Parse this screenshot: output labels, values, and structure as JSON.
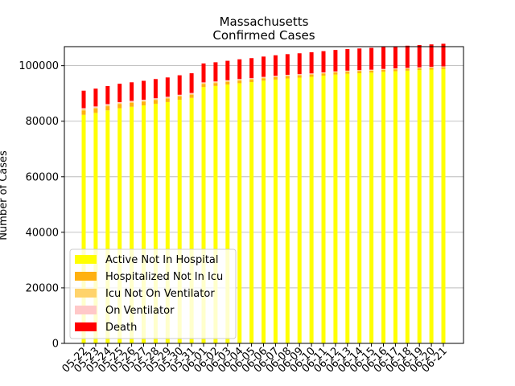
{
  "chart_data": {
    "type": "bar",
    "stacked": true,
    "title": "Massachusetts",
    "subtitle": "Confirmed Cases",
    "xlabel": "",
    "ylabel": "Number of Cases",
    "ylim": [
      0,
      106850
    ],
    "yticks": [
      0,
      20000,
      40000,
      60000,
      80000,
      100000
    ],
    "grid": "horizontal",
    "legend_position": "lower-left",
    "categories": [
      "05-22",
      "05-23",
      "05-24",
      "05-25",
      "05-26",
      "05-27",
      "05-28",
      "05-29",
      "05-30",
      "05-31",
      "06-01",
      "06-02",
      "06-03",
      "06-04",
      "06-05",
      "06-06",
      "06-07",
      "06-08",
      "06-09",
      "06-10",
      "06-11",
      "06-12",
      "06-13",
      "06-14",
      "06-15",
      "06-16",
      "06-17",
      "06-18",
      "06-19",
      "06-20",
      "06-21"
    ],
    "series": [
      {
        "name": "Active Not In Hospital",
        "color": "#ffff00",
        "values": [
          82300,
          83000,
          83900,
          84700,
          85200,
          85700,
          86300,
          86900,
          87700,
          88400,
          92300,
          92700,
          93200,
          93700,
          94100,
          94600,
          95000,
          95400,
          95700,
          96000,
          96400,
          96800,
          97100,
          97300,
          97500,
          97800,
          98000,
          98200,
          98400,
          98600,
          98800
        ]
      },
      {
        "name": "Hospitalized Not In Icu",
        "color": "#ffb10f",
        "values": [
          1600,
          1550,
          1500,
          1450,
          1400,
          1350,
          1300,
          1250,
          1200,
          1150,
          1100,
          1050,
          1000,
          950,
          900,
          880,
          860,
          840,
          820,
          800,
          780,
          760,
          740,
          720,
          700,
          690,
          680,
          670,
          660,
          650,
          640
        ]
      },
      {
        "name": "Icu Not On Ventilator",
        "color": "#ffd36b",
        "values": [
          400,
          390,
          380,
          370,
          360,
          350,
          340,
          330,
          320,
          310,
          300,
          290,
          280,
          270,
          260,
          250,
          240,
          230,
          220,
          210,
          200,
          195,
          190,
          185,
          180,
          175,
          170,
          165,
          160,
          155,
          150
        ]
      },
      {
        "name": "On Ventilator",
        "color": "#ffc8c8",
        "values": [
          400,
          390,
          380,
          370,
          360,
          350,
          340,
          330,
          320,
          310,
          300,
          290,
          280,
          270,
          260,
          250,
          240,
          230,
          220,
          210,
          200,
          195,
          190,
          185,
          180,
          175,
          170,
          165,
          160,
          155,
          150
        ]
      },
      {
        "name": "Death",
        "color": "#ff0000",
        "values": [
          6300,
          6400,
          6500,
          6600,
          6700,
          6800,
          6900,
          6950,
          7000,
          7100,
          6800,
          6900,
          7000,
          7100,
          7200,
          7300,
          7400,
          7450,
          7500,
          7600,
          7650,
          7700,
          7750,
          7800,
          7850,
          7900,
          7950,
          8000,
          8050,
          8100,
          8150
        ]
      }
    ]
  }
}
